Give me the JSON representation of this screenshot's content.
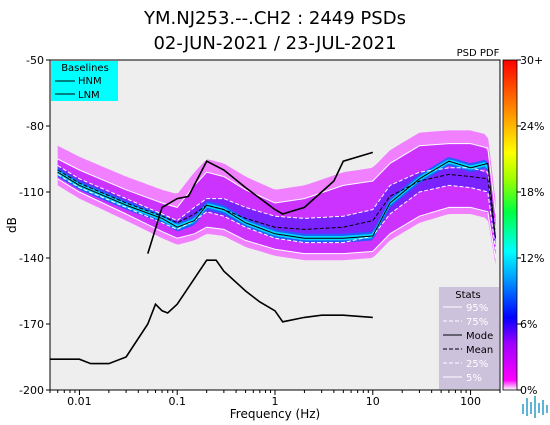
{
  "chart_data": {
    "type": "heatmap",
    "title_line1": "YM.NJ253.--.CH2 : 2449 PSDs",
    "title_line2": "02-JUN-2021 / 23-JUL-2021",
    "xlabel": "Frequency (Hz)",
    "ylabel": "dB",
    "x_scale": "log",
    "xlim": [
      0.005,
      200
    ],
    "ylim": [
      -200,
      -50
    ],
    "x_ticks": [
      "0.01",
      "0.1",
      "1",
      "10",
      "100"
    ],
    "y_ticks": [
      "-50",
      "-80",
      "-110",
      "-140",
      "-170",
      "-200"
    ],
    "colorbar": {
      "title": "PSD PDF",
      "ticks": [
        "30+",
        "24%",
        "18%",
        "12%",
        "6%",
        "0%"
      ],
      "range": [
        0,
        30
      ]
    },
    "baselines": {
      "title": "Baselines",
      "entries": [
        "HNM",
        "LNM"
      ],
      "HNM": [
        [
          0.05,
          -138
        ],
        [
          0.07,
          -117
        ],
        [
          0.1,
          -113
        ],
        [
          0.13,
          -112
        ],
        [
          0.2,
          -96
        ],
        [
          0.3,
          -100
        ],
        [
          0.5,
          -108
        ],
        [
          1,
          -118
        ],
        [
          1.2,
          -120
        ],
        [
          2,
          -117
        ],
        [
          4,
          -105
        ],
        [
          5,
          -96
        ],
        [
          10,
          -92
        ]
      ],
      "LNM": [
        [
          0.005,
          -186
        ],
        [
          0.01,
          -186
        ],
        [
          0.013,
          -188
        ],
        [
          0.02,
          -188
        ],
        [
          0.03,
          -185
        ],
        [
          0.05,
          -170
        ],
        [
          0.06,
          -161
        ],
        [
          0.07,
          -164
        ],
        [
          0.08,
          -165
        ],
        [
          0.1,
          -161
        ],
        [
          0.2,
          -141
        ],
        [
          0.25,
          -141
        ],
        [
          0.3,
          -146
        ],
        [
          0.5,
          -155
        ],
        [
          0.7,
          -160
        ],
        [
          1,
          -164
        ],
        [
          1.2,
          -169
        ],
        [
          2,
          -167
        ],
        [
          3,
          -166
        ],
        [
          5,
          -166
        ],
        [
          10,
          -167
        ]
      ]
    },
    "stats": {
      "title": "Stats",
      "entries": [
        "95%",
        "75%",
        "Mode",
        "Mean",
        "25%",
        "5%"
      ],
      "p95": [
        [
          0.006,
          -95
        ],
        [
          0.01,
          -100
        ],
        [
          0.03,
          -109
        ],
        [
          0.07,
          -115
        ],
        [
          0.1,
          -117
        ],
        [
          0.15,
          -107
        ],
        [
          0.2,
          -101
        ],
        [
          0.3,
          -103
        ],
        [
          0.5,
          -109
        ],
        [
          1,
          -115
        ],
        [
          2,
          -113
        ],
        [
          5,
          -107
        ],
        [
          10,
          -105
        ],
        [
          15,
          -97
        ],
        [
          30,
          -89
        ],
        [
          60,
          -88
        ],
        [
          100,
          -88
        ],
        [
          150,
          -90
        ],
        [
          180,
          -120
        ]
      ],
      "p75": [
        [
          0.006,
          -98
        ],
        [
          0.01,
          -104
        ],
        [
          0.03,
          -113
        ],
        [
          0.07,
          -120
        ],
        [
          0.1,
          -123
        ],
        [
          0.15,
          -117
        ],
        [
          0.2,
          -113
        ],
        [
          0.3,
          -113
        ],
        [
          0.5,
          -117
        ],
        [
          1,
          -121
        ],
        [
          2,
          -122
        ],
        [
          5,
          -121
        ],
        [
          10,
          -118
        ],
        [
          15,
          -107
        ],
        [
          30,
          -101
        ],
        [
          60,
          -99
        ],
        [
          100,
          -99
        ],
        [
          150,
          -101
        ],
        [
          180,
          -128
        ]
      ],
      "mode": [
        [
          0.006,
          -101
        ],
        [
          0.01,
          -107
        ],
        [
          0.03,
          -116
        ],
        [
          0.07,
          -122
        ],
        [
          0.1,
          -126
        ],
        [
          0.15,
          -123
        ],
        [
          0.2,
          -116
        ],
        [
          0.3,
          -118
        ],
        [
          0.5,
          -124
        ],
        [
          1,
          -129
        ],
        [
          2,
          -131
        ],
        [
          5,
          -131
        ],
        [
          10,
          -130
        ],
        [
          15,
          -115
        ],
        [
          30,
          -104
        ],
        [
          60,
          -96
        ],
        [
          100,
          -99
        ],
        [
          150,
          -97
        ],
        [
          180,
          -131
        ]
      ],
      "mean": [
        [
          0.006,
          -100
        ],
        [
          0.01,
          -106
        ],
        [
          0.03,
          -115
        ],
        [
          0.07,
          -121
        ],
        [
          0.1,
          -124
        ],
        [
          0.15,
          -120
        ],
        [
          0.2,
          -116
        ],
        [
          0.3,
          -118
        ],
        [
          0.5,
          -122
        ],
        [
          1,
          -126
        ],
        [
          2,
          -127
        ],
        [
          5,
          -126
        ],
        [
          10,
          -123
        ],
        [
          15,
          -112
        ],
        [
          30,
          -105
        ],
        [
          60,
          -102
        ],
        [
          100,
          -103
        ],
        [
          150,
          -104
        ],
        [
          180,
          -131
        ]
      ],
      "p25": [
        [
          0.006,
          -102
        ],
        [
          0.01,
          -108
        ],
        [
          0.03,
          -117
        ],
        [
          0.07,
          -124
        ],
        [
          0.1,
          -127
        ],
        [
          0.15,
          -123
        ],
        [
          0.2,
          -119
        ],
        [
          0.3,
          -121
        ],
        [
          0.5,
          -126
        ],
        [
          1,
          -131
        ],
        [
          2,
          -133
        ],
        [
          5,
          -133
        ],
        [
          10,
          -130
        ],
        [
          15,
          -120
        ],
        [
          30,
          -110
        ],
        [
          60,
          -107
        ],
        [
          100,
          -108
        ],
        [
          150,
          -110
        ],
        [
          180,
          -136
        ]
      ],
      "p5": [
        [
          0.006,
          -104
        ],
        [
          0.01,
          -110
        ],
        [
          0.03,
          -120
        ],
        [
          0.07,
          -128
        ],
        [
          0.1,
          -131
        ],
        [
          0.15,
          -129
        ],
        [
          0.2,
          -126
        ],
        [
          0.3,
          -127
        ],
        [
          0.5,
          -132
        ],
        [
          1,
          -136
        ],
        [
          2,
          -138
        ],
        [
          5,
          -138
        ],
        [
          10,
          -137
        ],
        [
          15,
          -129
        ],
        [
          30,
          -121
        ],
        [
          60,
          -117
        ],
        [
          100,
          -117
        ],
        [
          150,
          -119
        ],
        [
          180,
          -140
        ]
      ]
    }
  }
}
